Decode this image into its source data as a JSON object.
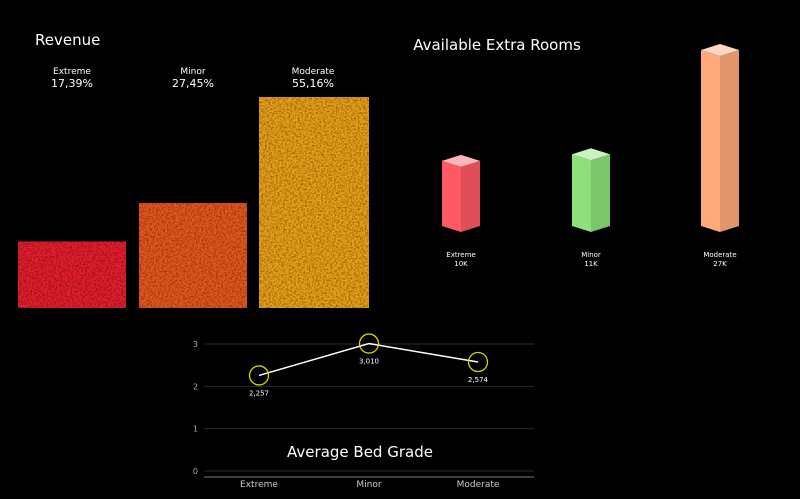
{
  "chart_data": [
    {
      "type": "bar",
      "title": "Revenue",
      "categories": [
        "Extreme",
        "Minor",
        "Moderate"
      ],
      "values": [
        17.39,
        27.45,
        55.16
      ],
      "value_labels": [
        "17,39%",
        "27,45%",
        "55,16%"
      ],
      "ylim": [
        0,
        55.16
      ],
      "colors": [
        "#e8202e",
        "#e8581e",
        "#eba21a"
      ],
      "grid": false
    },
    {
      "type": "bar",
      "title": "Available Extra Rooms",
      "categories": [
        "Extreme",
        "Minor",
        "Moderate"
      ],
      "values": [
        10,
        11,
        27
      ],
      "value_labels": [
        "10K",
        "11K",
        "27K"
      ],
      "ylim": [
        0,
        27
      ],
      "colors": [
        "#ff5a63",
        "#8ee07a",
        "#ffa97a"
      ],
      "grid": false
    },
    {
      "type": "line",
      "title": "Average Bed Grade",
      "categories": [
        "Extreme",
        "Minor",
        "Moderate"
      ],
      "values": [
        2.257,
        3.01,
        2.574
      ],
      "value_labels": [
        "2,257",
        "3,010",
        "2,574"
      ],
      "ylim": [
        0,
        3
      ],
      "yticks": [
        "0",
        "1",
        "2",
        "3"
      ],
      "grid": true,
      "colors": {
        "line": "#ffffff",
        "marker": "#d4d400"
      }
    }
  ]
}
